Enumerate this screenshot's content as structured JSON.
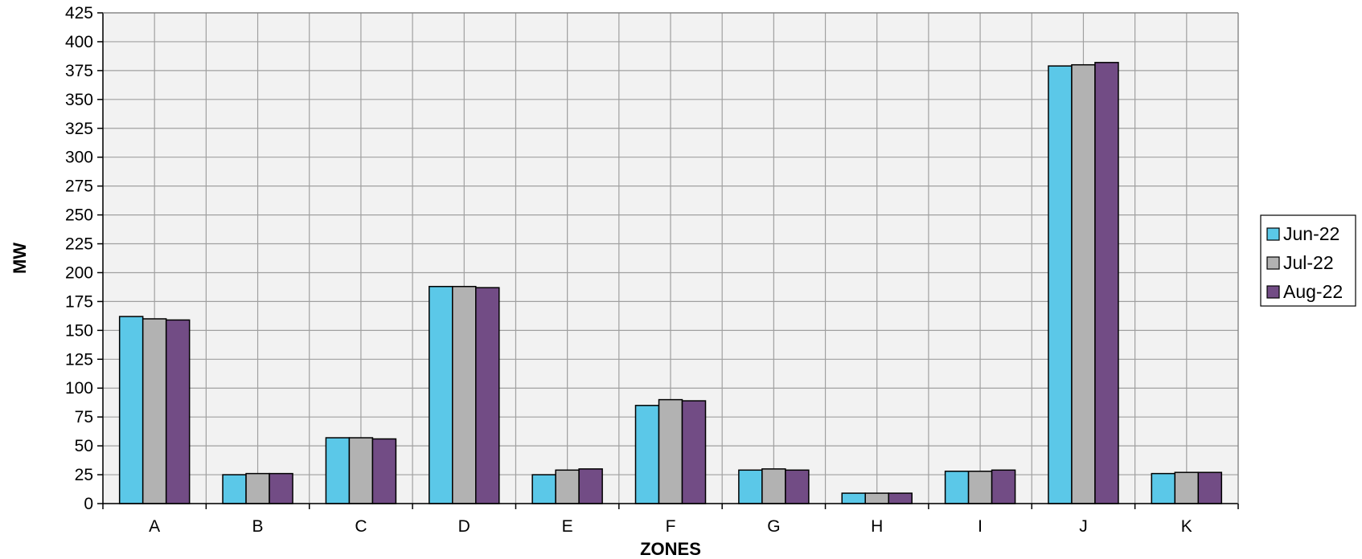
{
  "chart_data": {
    "type": "bar",
    "title": "",
    "xlabel": "ZONES",
    "ylabel": "MW",
    "ylim": [
      0,
      425
    ],
    "ytick_step": 25,
    "grid": true,
    "legend_position": "right",
    "categories": [
      "A",
      "B",
      "C",
      "D",
      "E",
      "F",
      "G",
      "H",
      "I",
      "J",
      "K"
    ],
    "series": [
      {
        "name": "Jun-22",
        "color": "#5bc8e8",
        "values": [
          162,
          25,
          57,
          188,
          25,
          85,
          29,
          9,
          28,
          379,
          26
        ]
      },
      {
        "name": "Jul-22",
        "color": "#b2b2b2",
        "values": [
          160,
          26,
          57,
          188,
          29,
          90,
          30,
          9,
          28,
          380,
          27
        ]
      },
      {
        "name": "Aug-22",
        "color": "#724c85",
        "values": [
          159,
          26,
          56,
          187,
          30,
          89,
          29,
          9,
          29,
          382,
          27
        ]
      }
    ],
    "colors": {
      "plot_background": "#f2f2f2",
      "grid": "#a0a0a0",
      "axis": "#000000"
    }
  }
}
